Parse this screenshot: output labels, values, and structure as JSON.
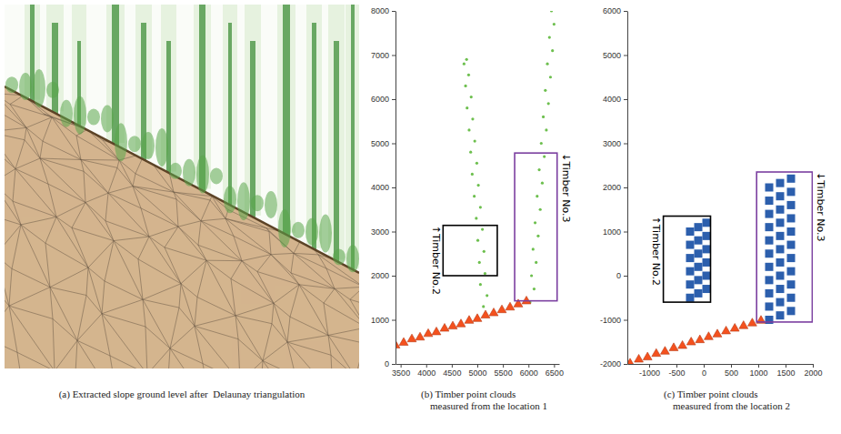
{
  "chart_data": [
    {
      "type": "image",
      "caption": "(a) Extracted slope ground level after  Delaunay triangulation"
    },
    {
      "type": "scatter",
      "caption": "(b) Timber point clouds measured from the location 1",
      "xlim": [
        3400,
        6600
      ],
      "xticks": [
        3500,
        4000,
        4500,
        5000,
        5500,
        6000,
        6500
      ],
      "ylim": [
        0,
        8000
      ],
      "yticks": [
        0,
        1000,
        2000,
        3000,
        4000,
        5000,
        6000,
        7000,
        8000
      ],
      "series": [
        {
          "color": "#6dbf4e",
          "marker": "point",
          "x": [
            5120,
            5190,
            5060,
            5150,
            5040,
            5130,
            5010,
            5100,
            4980,
            5060,
            4940,
            5020,
            4900,
            4990,
            4870,
            4950,
            4840,
            4910,
            4800,
            4880,
            4770,
            4830,
            4740,
            4790
          ],
          "values": [
            1300,
            1550,
            1800,
            2050,
            2300,
            2550,
            2800,
            3050,
            3300,
            3550,
            3800,
            4050,
            4300,
            4550,
            4800,
            5050,
            5300,
            5550,
            5800,
            6050,
            6300,
            6550,
            6800,
            6900
          ]
        },
        {
          "color": "#6dbf4e",
          "marker": "point",
          "x": [
            6030,
            6110,
            6060,
            6150,
            6090,
            6190,
            6130,
            6230,
            6170,
            6270,
            6210,
            6310,
            6250,
            6350,
            6290,
            6390,
            6330,
            6430,
            6370,
            6470,
            6410,
            6500,
            6450
          ],
          "values": [
            1400,
            1700,
            2000,
            2300,
            2600,
            2900,
            3200,
            3500,
            3800,
            4100,
            4400,
            4700,
            5000,
            5300,
            5600,
            5900,
            6200,
            6500,
            6800,
            7100,
            7400,
            7700,
            8000
          ]
        },
        {
          "color": "#f4511e",
          "marker": "triangle",
          "x": [
            3400,
            3560,
            3720,
            3880,
            4040,
            4200,
            4360,
            4520,
            4680,
            4840,
            5000,
            5160,
            5320,
            5480,
            5640,
            5800,
            5960
          ],
          "values": [
            420,
            480,
            560,
            600,
            680,
            720,
            800,
            850,
            900,
            980,
            1020,
            1100,
            1150,
            1220,
            1280,
            1350,
            1420
          ]
        }
      ],
      "annotations": [
        {
          "text": "↑Timber No.2",
          "color": "#000000",
          "x0": 4330,
          "x1": 5390,
          "y0": 2000,
          "y1": 3140
        },
        {
          "text": "↓Timber No.3",
          "color": "#7b3fa0",
          "x0": 5730,
          "x1": 6560,
          "y0": 1430,
          "y1": 4780
        }
      ]
    },
    {
      "type": "scatter",
      "caption": "(c) Timber point clouds measured from the location 2",
      "xlim": [
        -1400,
        2000
      ],
      "xticks": [
        -1000,
        -500,
        0,
        500,
        1000,
        1500,
        2000
      ],
      "ylim": [
        -2000,
        6000
      ],
      "yticks": [
        -2000,
        -1000,
        0,
        1000,
        2000,
        3000,
        4000,
        5000,
        6000
      ],
      "series": [
        {
          "color": "#2c5fad",
          "marker": "square",
          "x": [
            -250,
            -100,
            50,
            -250,
            -100,
            50,
            -250,
            -100,
            50,
            -250,
            -100,
            50,
            -250,
            -100,
            50,
            -250,
            -100,
            50
          ],
          "values": [
            -500,
            -400,
            -300,
            -200,
            -100,
            0,
            100,
            200,
            300,
            400,
            500,
            600,
            700,
            800,
            900,
            1000,
            1100,
            1200
          ]
        },
        {
          "color": "#2c5fad",
          "marker": "square",
          "x": [
            1200,
            1400,
            1600,
            1200,
            1400,
            1600,
            1200,
            1400,
            1600,
            1200,
            1400,
            1600,
            1200,
            1400,
            1600,
            1200,
            1400,
            1600,
            1200,
            1400,
            1600,
            1200,
            1400,
            1600,
            1200,
            1400,
            1600,
            1200,
            1400,
            1600,
            1200,
            1400,
            1600
          ],
          "values": [
            -1000,
            -900,
            -800,
            -700,
            -600,
            -500,
            -400,
            -300,
            -200,
            -100,
            0,
            100,
            200,
            300,
            400,
            500,
            600,
            700,
            800,
            900,
            1000,
            1100,
            1200,
            1300,
            1400,
            1500,
            1600,
            1700,
            1800,
            1900,
            2000,
            2100,
            2200
          ]
        },
        {
          "color": "#f4511e",
          "marker": "triangle",
          "x": [
            -1350,
            -1190,
            -1030,
            -870,
            -710,
            -550,
            -390,
            -230,
            -70,
            90,
            250,
            410,
            570,
            730,
            890,
            1050
          ],
          "values": [
            -1990,
            -1900,
            -1850,
            -1770,
            -1720,
            -1640,
            -1590,
            -1510,
            -1460,
            -1390,
            -1330,
            -1260,
            -1200,
            -1140,
            -1080,
            -1020
          ]
        }
      ],
      "annotations": [
        {
          "text": "↑Timber No.2",
          "color": "#000000",
          "x0": -740,
          "x1": 125,
          "y0": -600,
          "y1": 1350
        },
        {
          "text": "↓Timber No.3",
          "color": "#7b3fa0",
          "x0": 970,
          "x1": 1990,
          "y0": -1050,
          "y1": 2350
        }
      ]
    }
  ]
}
